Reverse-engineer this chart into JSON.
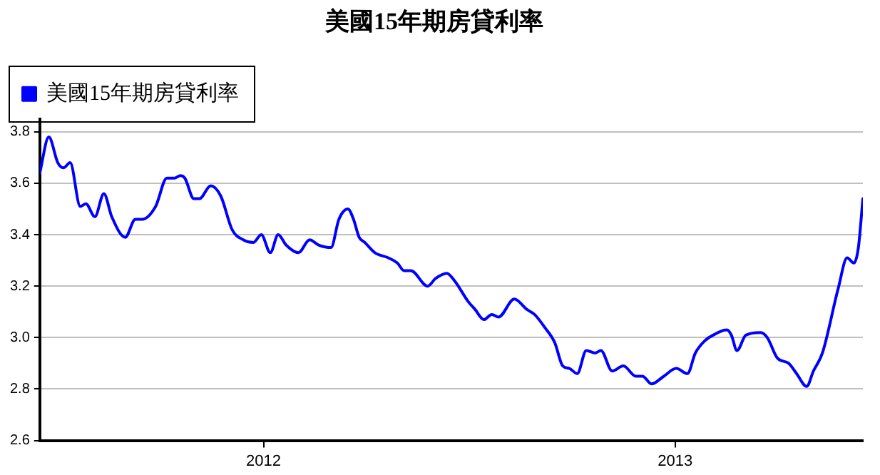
{
  "chart_data": {
    "type": "line",
    "title": "美國15年期房貸利率",
    "legend": "top left",
    "grid": "y",
    "marker": "none",
    "line_style": "solid",
    "xlim": [
      "2011-06-16",
      "2013-06-17"
    ],
    "xticks": [
      {
        "value": "2012-01-01",
        "label": "2012"
      },
      {
        "value": "2013-01-01",
        "label": "2013"
      }
    ],
    "ylim": [
      2.6,
      3.85
    ],
    "yticks": [
      2.6,
      2.8,
      {
        "value": 3,
        "label": "3.0"
      },
      3.2,
      3.4,
      3.6,
      3.8
    ],
    "x": [
      "2011-06-16",
      "2011-06-24",
      "2011-07-02",
      "2011-07-07",
      "2011-07-13",
      "2011-07-22",
      "2011-07-27",
      "2011-08-04",
      "2011-08-12",
      "2011-08-19",
      "2011-08-31",
      "2011-09-09",
      "2011-09-15",
      "2011-09-27",
      "2011-10-07",
      "2011-10-14",
      "2011-10-19",
      "2011-10-23",
      "2011-10-31",
      "2011-11-05",
      "2011-11-15",
      "2011-11-24",
      "2011-12-04",
      "2011-12-14",
      "2011-12-23",
      "2011-12-30",
      "2012-01-07",
      "2012-01-14",
      "2012-01-21",
      "2012-02-01",
      "2012-02-11",
      "2012-02-19",
      "2012-03-01",
      "2012-03-08",
      "2012-03-16",
      "2012-03-21",
      "2012-03-26",
      "2012-03-31",
      "2012-04-09",
      "2012-04-21",
      "2012-04-29",
      "2012-05-05",
      "2012-05-11",
      "2012-05-26",
      "2012-06-02",
      "2012-06-12",
      "2012-06-19",
      "2012-07-01",
      "2012-07-07",
      "2012-07-15",
      "2012-07-22",
      "2012-07-28",
      "2012-08-11",
      "2012-08-22",
      "2012-08-29",
      "2012-09-07",
      "2012-09-16",
      "2012-09-23",
      "2012-09-29",
      "2012-10-06",
      "2012-10-14",
      "2012-10-22",
      "2012-10-27",
      "2012-11-06",
      "2012-11-16",
      "2012-11-27",
      "2012-12-03",
      "2012-12-11",
      "2012-12-22",
      "2013-01-02",
      "2013-01-12",
      "2013-01-19",
      "2013-01-28",
      "2013-02-04",
      "2013-02-16",
      "2013-02-20",
      "2013-02-25",
      "2013-03-05",
      "2013-03-18",
      "2013-03-24",
      "2013-04-02",
      "2013-04-12",
      "2013-04-19",
      "2013-04-28",
      "2013-05-04",
      "2013-05-12",
      "2013-05-26",
      "2013-06-03",
      "2013-06-09",
      "2013-06-13",
      "2013-06-17"
    ],
    "series": [
      {
        "name": "美國15年期房貸利率",
        "color": "#0000ff",
        "values": [
          3.64,
          3.78,
          3.68,
          3.66,
          3.68,
          3.51,
          3.52,
          3.47,
          3.56,
          3.47,
          3.39,
          3.46,
          3.46,
          3.51,
          3.62,
          3.62,
          3.63,
          3.62,
          3.54,
          3.54,
          3.59,
          3.55,
          3.42,
          3.38,
          3.37,
          3.4,
          3.33,
          3.4,
          3.36,
          3.33,
          3.38,
          3.36,
          3.35,
          3.46,
          3.5,
          3.46,
          3.39,
          3.37,
          3.33,
          3.31,
          3.29,
          3.26,
          3.26,
          3.2,
          3.23,
          3.25,
          3.22,
          3.14,
          3.11,
          3.07,
          3.09,
          3.08,
          3.15,
          3.11,
          3.09,
          3.04,
          2.98,
          2.89,
          2.88,
          2.86,
          2.95,
          2.94,
          2.95,
          2.87,
          2.89,
          2.85,
          2.85,
          2.82,
          2.85,
          2.88,
          2.86,
          2.94,
          2.99,
          3.01,
          3.03,
          3.01,
          2.95,
          3.01,
          3.02,
          3.0,
          2.92,
          2.9,
          2.86,
          2.81,
          2.87,
          2.94,
          3.19,
          3.31,
          3.29,
          3.35,
          3.54
        ]
      }
    ]
  }
}
